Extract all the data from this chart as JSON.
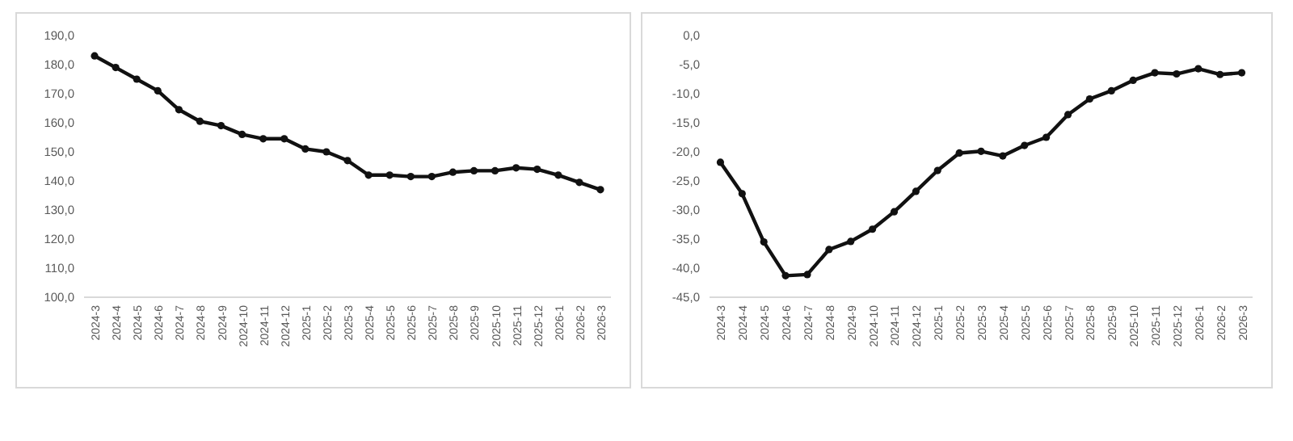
{
  "chart_data": [
    {
      "type": "line",
      "categories": [
        "2024-3",
        "2024-4",
        "2024-5",
        "2024-6",
        "2024-7",
        "2024-8",
        "2024-9",
        "2024-10",
        "2024-11",
        "2024-12",
        "2025-1",
        "2025-2",
        "2025-3",
        "2025-4",
        "2025-5",
        "2025-6",
        "2025-7",
        "2025-8",
        "2025-9",
        "2025-10",
        "2025-11",
        "2025-12",
        "2026-1",
        "2026-2",
        "2026-3"
      ],
      "series": [
        {
          "color": "#111111",
          "values": [
            183,
            179,
            175,
            171,
            164.5,
            160.5,
            159,
            156,
            154.5,
            154.5,
            151,
            150,
            147,
            142,
            142,
            141.5,
            141.5,
            143,
            143.5,
            143.5,
            144.5,
            144,
            142,
            139.5,
            137
          ]
        }
      ],
      "ylim": [
        100,
        190
      ],
      "yticks": [
        {
          "value": 100,
          "label": "100,0"
        },
        {
          "value": 110,
          "label": "110,0"
        },
        {
          "value": 120,
          "label": "120,0"
        },
        {
          "value": 130,
          "label": "130,0"
        },
        {
          "value": 140,
          "label": "140,0"
        },
        {
          "value": 150,
          "label": "150,0"
        },
        {
          "value": 160,
          "label": "160,0"
        },
        {
          "value": 170,
          "label": "170,0"
        },
        {
          "value": 180,
          "label": "180,0"
        },
        {
          "value": 190,
          "label": "190,0"
        }
      ],
      "marker": "circle",
      "line_style": "solid",
      "grid": false
    },
    {
      "type": "line",
      "categories": [
        "2024-3",
        "2024-4",
        "2024-5",
        "2024-6",
        "2024-7",
        "2024-8",
        "2024-9",
        "2024-10",
        "2024-11",
        "2024-12",
        "2025-1",
        "2025-2",
        "2025-3",
        "2025-4",
        "2025-5",
        "2025-6",
        "2025-7",
        "2025-8",
        "2025-9",
        "2025-10",
        "2025-11",
        "2025-12",
        "2026-1",
        "2026-2",
        "2026-3"
      ],
      "series": [
        {
          "color": "#111111",
          "values": [
            -21.8,
            -27.2,
            -35.5,
            -41.3,
            -41.1,
            -36.8,
            -35.4,
            -33.3,
            -30.3,
            -26.8,
            -23.2,
            -20.2,
            -19.9,
            -20.7,
            -18.9,
            -17.5,
            -13.6,
            -10.9,
            -9.5,
            -7.7,
            -6.4,
            -6.6,
            -5.7,
            -6.7,
            -6.4
          ]
        }
      ],
      "ylim": [
        -45,
        0
      ],
      "yticks": [
        {
          "value": -45,
          "label": "-45,0"
        },
        {
          "value": -40,
          "label": "-40,0"
        },
        {
          "value": -35,
          "label": "-35,0"
        },
        {
          "value": -30,
          "label": "-30,0"
        },
        {
          "value": -25,
          "label": "-25,0"
        },
        {
          "value": -20,
          "label": "-20,0"
        },
        {
          "value": -15,
          "label": "-15,0"
        },
        {
          "value": -10,
          "label": "-10,0"
        },
        {
          "value": -5,
          "label": "-5,0"
        },
        {
          "value": 0,
          "label": "0,0"
        }
      ],
      "marker": "circle",
      "line_style": "solid",
      "grid": false
    }
  ]
}
